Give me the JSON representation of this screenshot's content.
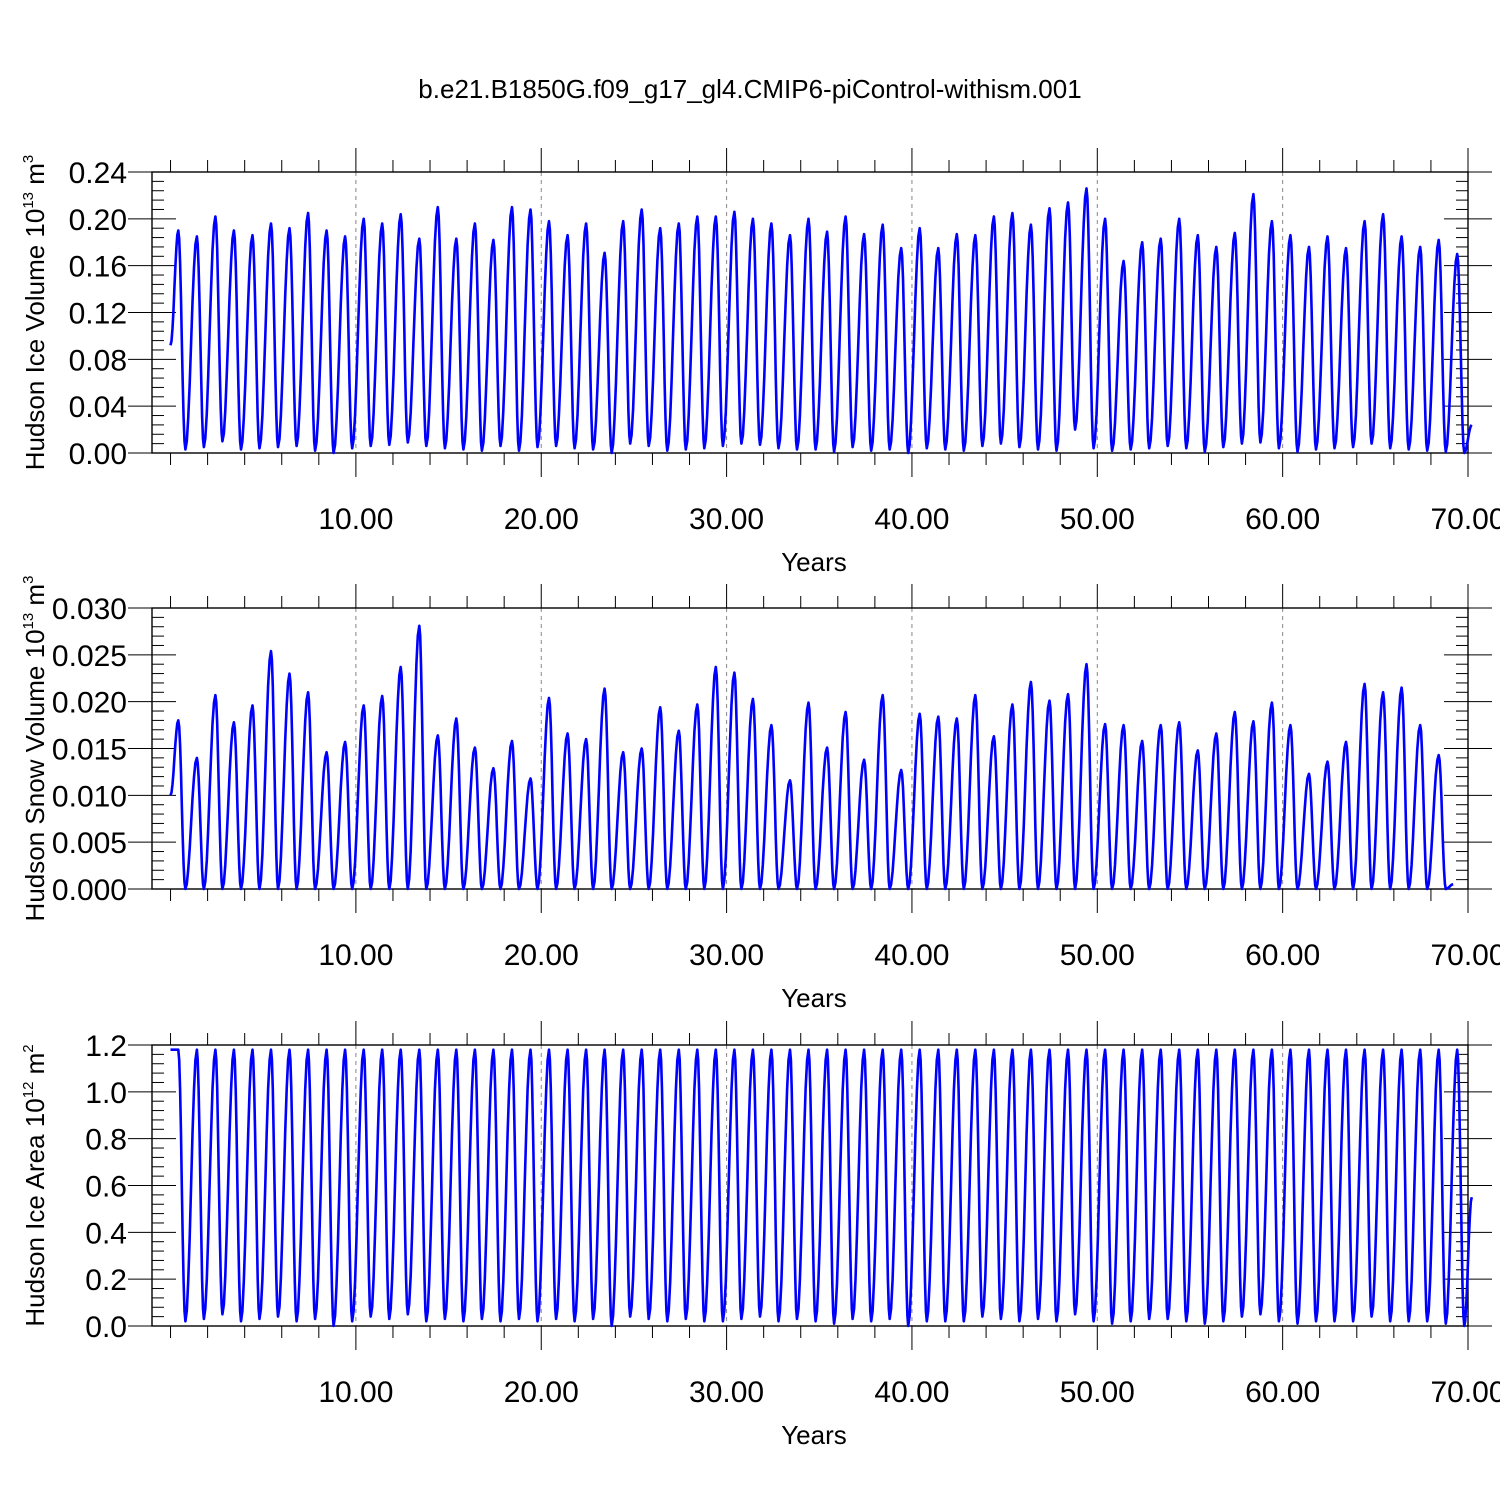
{
  "title": "b.e21.B1850G.f09_g17_gl4.CMIP6-piControl-withism.001",
  "chart_data": [
    {
      "type": "line",
      "xlabel": "Years",
      "ylabel": {
        "prefix": "Hudson Ice Volume 10",
        "exp": "13",
        "mid": " m",
        "unit_exp": "3"
      },
      "xlim": [
        -1.0,
        70.0
      ],
      "ylim": [
        0.0,
        0.24
      ],
      "yticks": [
        0.0,
        0.04,
        0.08,
        0.12,
        0.16,
        0.2,
        0.24
      ],
      "ytick_labels": [
        "0.00",
        "0.04",
        "0.08",
        "0.12",
        "0.16",
        "0.20",
        "0.24"
      ],
      "xticks": [
        10,
        20,
        30,
        40,
        50,
        60,
        70
      ],
      "xtick_labels": [
        "10.00",
        "20.00",
        "30.00",
        "40.00",
        "50.00",
        "60.00",
        "70.00"
      ],
      "vgrid_at": [
        10,
        20,
        30,
        40,
        50,
        60
      ],
      "grid": "vertical-dashed",
      "color": "#0000ff",
      "series": [
        {
          "start": 0.092,
          "end": 0.024,
          "peaks": [
            0.19,
            0.185,
            0.202,
            0.19,
            0.186,
            0.196,
            0.192,
            0.205,
            0.19,
            0.185,
            0.2,
            0.196,
            0.204,
            0.183,
            0.21,
            0.183,
            0.196,
            0.182,
            0.21,
            0.208,
            0.198,
            0.186,
            0.196,
            0.171,
            0.198,
            0.208,
            0.192,
            0.196,
            0.202,
            0.202,
            0.206,
            0.2,
            0.196,
            0.186,
            0.2,
            0.189,
            0.202,
            0.187,
            0.195,
            0.175,
            0.192,
            0.175,
            0.187,
            0.186,
            0.202,
            0.205,
            0.195,
            0.209,
            0.214,
            0.226,
            0.2,
            0.164,
            0.18,
            0.183,
            0.2,
            0.186,
            0.176,
            0.188,
            0.221,
            0.198,
            0.186,
            0.176,
            0.185,
            0.175,
            0.198,
            0.204,
            0.185,
            0.176,
            0.182,
            0.17
          ],
          "troughs": [
            0.003,
            0.005,
            0.01,
            0.003,
            0.004,
            0.005,
            0.006,
            0.002,
            0.0,
            0.004,
            0.006,
            0.007,
            0.009,
            0.006,
            0.004,
            0.003,
            0.002,
            0.006,
            0.002,
            0.005,
            0.006,
            0.004,
            0.003,
            0.0,
            0.008,
            0.006,
            0.002,
            0.003,
            0.004,
            0.006,
            0.008,
            0.007,
            0.004,
            0.003,
            0.003,
            0.001,
            0.005,
            0.002,
            0.003,
            0.0,
            0.004,
            0.003,
            0.002,
            0.006,
            0.008,
            0.005,
            0.003,
            0.002,
            0.02,
            0.004,
            0.002,
            0.003,
            0.004,
            0.006,
            0.004,
            0.001,
            0.005,
            0.008,
            0.009,
            0.004,
            0.001,
            0.003,
            0.004,
            0.005,
            0.008,
            0.004,
            0.003,
            0.002,
            0.001,
            0.0
          ]
        }
      ]
    },
    {
      "type": "line",
      "xlabel": "Years",
      "ylabel": {
        "prefix": "Hudson Snow Volume 10",
        "exp": "13",
        "mid": " m",
        "unit_exp": "3"
      },
      "xlim": [
        -1.0,
        70.0
      ],
      "ylim": [
        0.0,
        0.03
      ],
      "yticks": [
        0.0,
        0.005,
        0.01,
        0.015,
        0.02,
        0.025,
        0.03
      ],
      "ytick_labels": [
        "0.000",
        "0.005",
        "0.010",
        "0.015",
        "0.020",
        "0.025",
        "0.030"
      ],
      "xticks": [
        10,
        20,
        30,
        40,
        50,
        60,
        70
      ],
      "xtick_labels": [
        "10.00",
        "20.00",
        "30.00",
        "40.00",
        "50.00",
        "60.00",
        "70.00"
      ],
      "vgrid_at": [
        10,
        20,
        30,
        40,
        50,
        60
      ],
      "grid": "vertical-dashed",
      "color": "#0000ff",
      "series": [
        {
          "start": 0.01,
          "end": 0.0005,
          "peaks": [
            0.018,
            0.014,
            0.0207,
            0.0178,
            0.0196,
            0.0254,
            0.023,
            0.021,
            0.0146,
            0.0157,
            0.0196,
            0.0206,
            0.0237,
            0.0281,
            0.0164,
            0.0182,
            0.0151,
            0.0129,
            0.0158,
            0.0118,
            0.0204,
            0.0166,
            0.016,
            0.0214,
            0.0146,
            0.015,
            0.0194,
            0.0169,
            0.0197,
            0.0237,
            0.0231,
            0.0203,
            0.0175,
            0.0116,
            0.0199,
            0.0151,
            0.0189,
            0.0138,
            0.0207,
            0.0127,
            0.0187,
            0.0184,
            0.0182,
            0.0207,
            0.0163,
            0.0197,
            0.0221,
            0.0201,
            0.0208,
            0.024,
            0.0176,
            0.0175,
            0.0158,
            0.0175,
            0.0178,
            0.0148,
            0.0166,
            0.0189,
            0.0179,
            0.0199,
            0.0175,
            0.0123,
            0.0136,
            0.0157,
            0.0219,
            0.021,
            0.0215,
            0.0175,
            0.0143
          ],
          "troughs": [
            0.0,
            0.0,
            0.0,
            0.0,
            0.0,
            0.0,
            0.0,
            0.0,
            0.0,
            0.0,
            0.0,
            0.0,
            0.0,
            0.0,
            0.0,
            0.0,
            0.0,
            0.0,
            0.0,
            0.0,
            0.0,
            0.0,
            0.0,
            0.0,
            0.0,
            0.0,
            0.0,
            0.0,
            0.0,
            0.0,
            0.0,
            0.0,
            0.0,
            0.0,
            0.0,
            0.0,
            0.0,
            0.0,
            0.0,
            0.0,
            0.0,
            0.0,
            0.0,
            0.0,
            0.0,
            0.0,
            0.0,
            0.0,
            0.0,
            0.0,
            0.0,
            0.0,
            0.0,
            0.0,
            0.0,
            0.0,
            0.0,
            0.0,
            0.0,
            0.0,
            0.0,
            0.0,
            0.0,
            0.0,
            0.0,
            0.0,
            0.0,
            0.0,
            0.0
          ]
        }
      ]
    },
    {
      "type": "line",
      "xlabel": "Years",
      "ylabel": {
        "prefix": "Hudson Ice Area 10",
        "exp": "12",
        "mid": " m",
        "unit_exp": "2"
      },
      "xlim": [
        -1.0,
        70.0
      ],
      "ylim": [
        0.0,
        1.2
      ],
      "yticks": [
        0.0,
        0.2,
        0.4,
        0.6,
        0.8,
        1.0,
        1.2
      ],
      "ytick_labels": [
        "0.0",
        "0.2",
        "0.4",
        "0.6",
        "0.8",
        "1.0",
        "1.2"
      ],
      "xticks": [
        10,
        20,
        30,
        40,
        50,
        60,
        70
      ],
      "xtick_labels": [
        "10.00",
        "20.00",
        "30.00",
        "40.00",
        "50.00",
        "60.00",
        "70.00"
      ],
      "vgrid_at": [
        10,
        20,
        30,
        40,
        50,
        60
      ],
      "grid": "vertical-dashed",
      "color": "#0000ff",
      "series": [
        {
          "start": 1.18,
          "end": 0.55,
          "peaks": [
            1.18,
            1.18,
            1.18,
            1.18,
            1.18,
            1.18,
            1.18,
            1.18,
            1.18,
            1.18,
            1.18,
            1.18,
            1.18,
            1.18,
            1.18,
            1.18,
            1.18,
            1.18,
            1.18,
            1.18,
            1.18,
            1.18,
            1.18,
            1.18,
            1.18,
            1.18,
            1.18,
            1.18,
            1.18,
            1.18,
            1.18,
            1.18,
            1.18,
            1.18,
            1.18,
            1.18,
            1.18,
            1.18,
            1.18,
            1.18,
            1.18,
            1.18,
            1.18,
            1.18,
            1.18,
            1.18,
            1.18,
            1.18,
            1.18,
            1.18,
            1.18,
            1.18,
            1.18,
            1.18,
            1.18,
            1.18,
            1.18,
            1.18,
            1.18,
            1.18,
            1.18,
            1.18,
            1.18,
            1.18,
            1.18,
            1.18,
            1.18,
            1.18,
            1.18,
            1.18
          ],
          "troughs": [
            0.02,
            0.03,
            0.05,
            0.02,
            0.03,
            0.04,
            0.02,
            0.03,
            0.0,
            0.02,
            0.04,
            0.03,
            0.05,
            0.02,
            0.03,
            0.02,
            0.03,
            0.02,
            0.03,
            0.02,
            0.03,
            0.02,
            0.03,
            0.0,
            0.04,
            0.03,
            0.02,
            0.03,
            0.02,
            0.02,
            0.03,
            0.04,
            0.02,
            0.03,
            0.02,
            0.01,
            0.03,
            0.02,
            0.03,
            0.0,
            0.02,
            0.02,
            0.02,
            0.04,
            0.03,
            0.02,
            0.03,
            0.02,
            0.05,
            0.02,
            0.01,
            0.02,
            0.03,
            0.03,
            0.02,
            0.01,
            0.02,
            0.04,
            0.05,
            0.02,
            0.01,
            0.02,
            0.02,
            0.02,
            0.04,
            0.02,
            0.02,
            0.02,
            0.01,
            0.0
          ]
        }
      ]
    }
  ]
}
